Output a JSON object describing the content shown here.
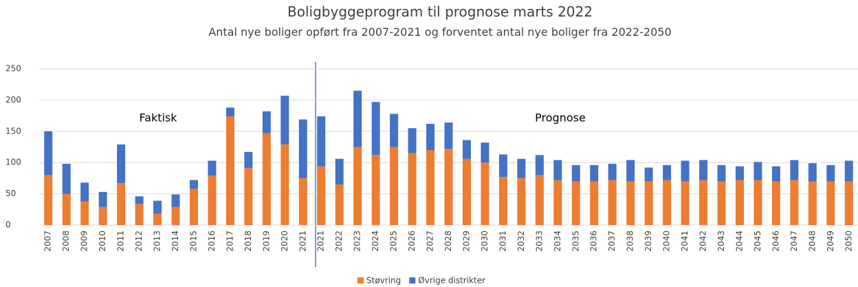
{
  "chart_data": {
    "type": "stacked_bar",
    "title": "Boligbyggeprogram til prognose marts 2022",
    "subtitle": "Antal nye boliger opført fra 2007-2021 og forventet antal nye boliger fra 2022-2050",
    "annotations": [
      "Faktisk",
      "Prognose"
    ],
    "categories": [
      "2007",
      "2008",
      "2009",
      "2010",
      "2011",
      "2012",
      "2013",
      "2014",
      "2015",
      "2016",
      "2017",
      "2018",
      "2019",
      "2020",
      "2021",
      "2021",
      "2022",
      "2023",
      "2024",
      "2025",
      "2026",
      "2027",
      "2028",
      "2029",
      "2030",
      "2031",
      "2032",
      "2033",
      "2034",
      "2035",
      "2036",
      "2037",
      "2038",
      "2039",
      "2040",
      "2041",
      "2042",
      "2043",
      "2044",
      "2045",
      "2046",
      "2047",
      "2048",
      "2049",
      "2050"
    ],
    "series": [
      {
        "name": "Støvring",
        "color": "#ed7d31",
        "values": [
          80,
          50,
          38,
          29,
          67,
          34,
          18,
          29,
          58,
          79,
          174,
          91,
          147,
          129,
          75,
          94,
          65,
          125,
          112,
          125,
          115,
          120,
          122,
          106,
          100,
          77,
          75,
          80,
          72,
          70,
          70,
          72,
          70,
          70,
          72,
          70,
          72,
          70,
          72,
          72,
          70,
          72,
          70,
          70,
          70
        ]
      },
      {
        "name": "Øvrige distrikter",
        "color": "#4472c4",
        "values": [
          70,
          48,
          30,
          24,
          62,
          12,
          21,
          20,
          14,
          24,
          14,
          26,
          35,
          78,
          94,
          80,
          41,
          90,
          85,
          53,
          40,
          42,
          42,
          30,
          32,
          36,
          31,
          32,
          32,
          26,
          26,
          26,
          34,
          22,
          24,
          33,
          32,
          26,
          22,
          29,
          24,
          32,
          29,
          26,
          33
        ]
      }
    ],
    "ylim": [
      0,
      250
    ],
    "yticks": [
      0,
      50,
      100,
      150,
      200,
      250
    ],
    "grid": true,
    "legend": "bottom"
  }
}
